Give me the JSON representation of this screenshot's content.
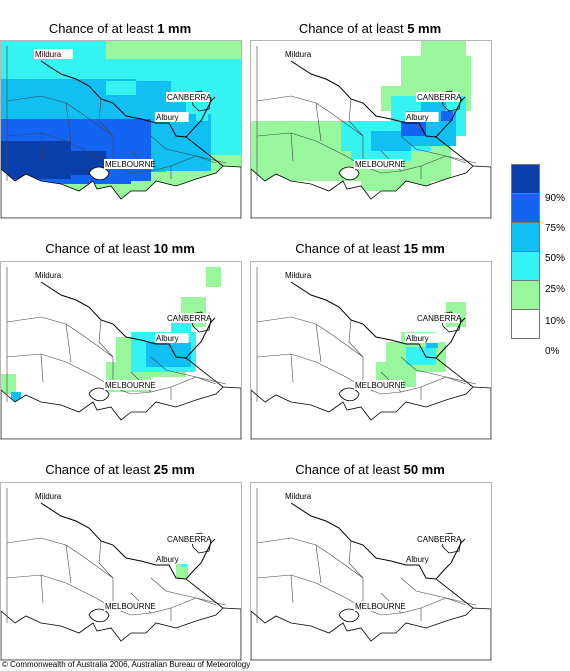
{
  "panels": [
    {
      "prefix": "Chance of at least ",
      "amount": "1 mm"
    },
    {
      "prefix": "Chance of at least ",
      "amount": "5 mm"
    },
    {
      "prefix": "Chance of at least ",
      "amount": "10 mm"
    },
    {
      "prefix": "Chance of at least ",
      "amount": "15 mm"
    },
    {
      "prefix": "Chance of at least ",
      "amount": "25 mm"
    },
    {
      "prefix": "Chance of at least ",
      "amount": "50 mm"
    }
  ],
  "cities": {
    "mildura": "Mildura",
    "canberra": "CANBERRA",
    "albury": "Albury",
    "melbourne": "MELBOURNE"
  },
  "legend": {
    "labels": [
      "90%",
      "75%",
      "50%",
      "25%",
      "10%",
      "0%"
    ],
    "colors": [
      "#0a3ea8",
      "#1464f4",
      "#11bff2",
      "#35f3f2",
      "#98f79c",
      "#ffffff"
    ]
  },
  "footer": "© Commonwealth of Australia 2006, Australian Bureau of Meteorology"
}
